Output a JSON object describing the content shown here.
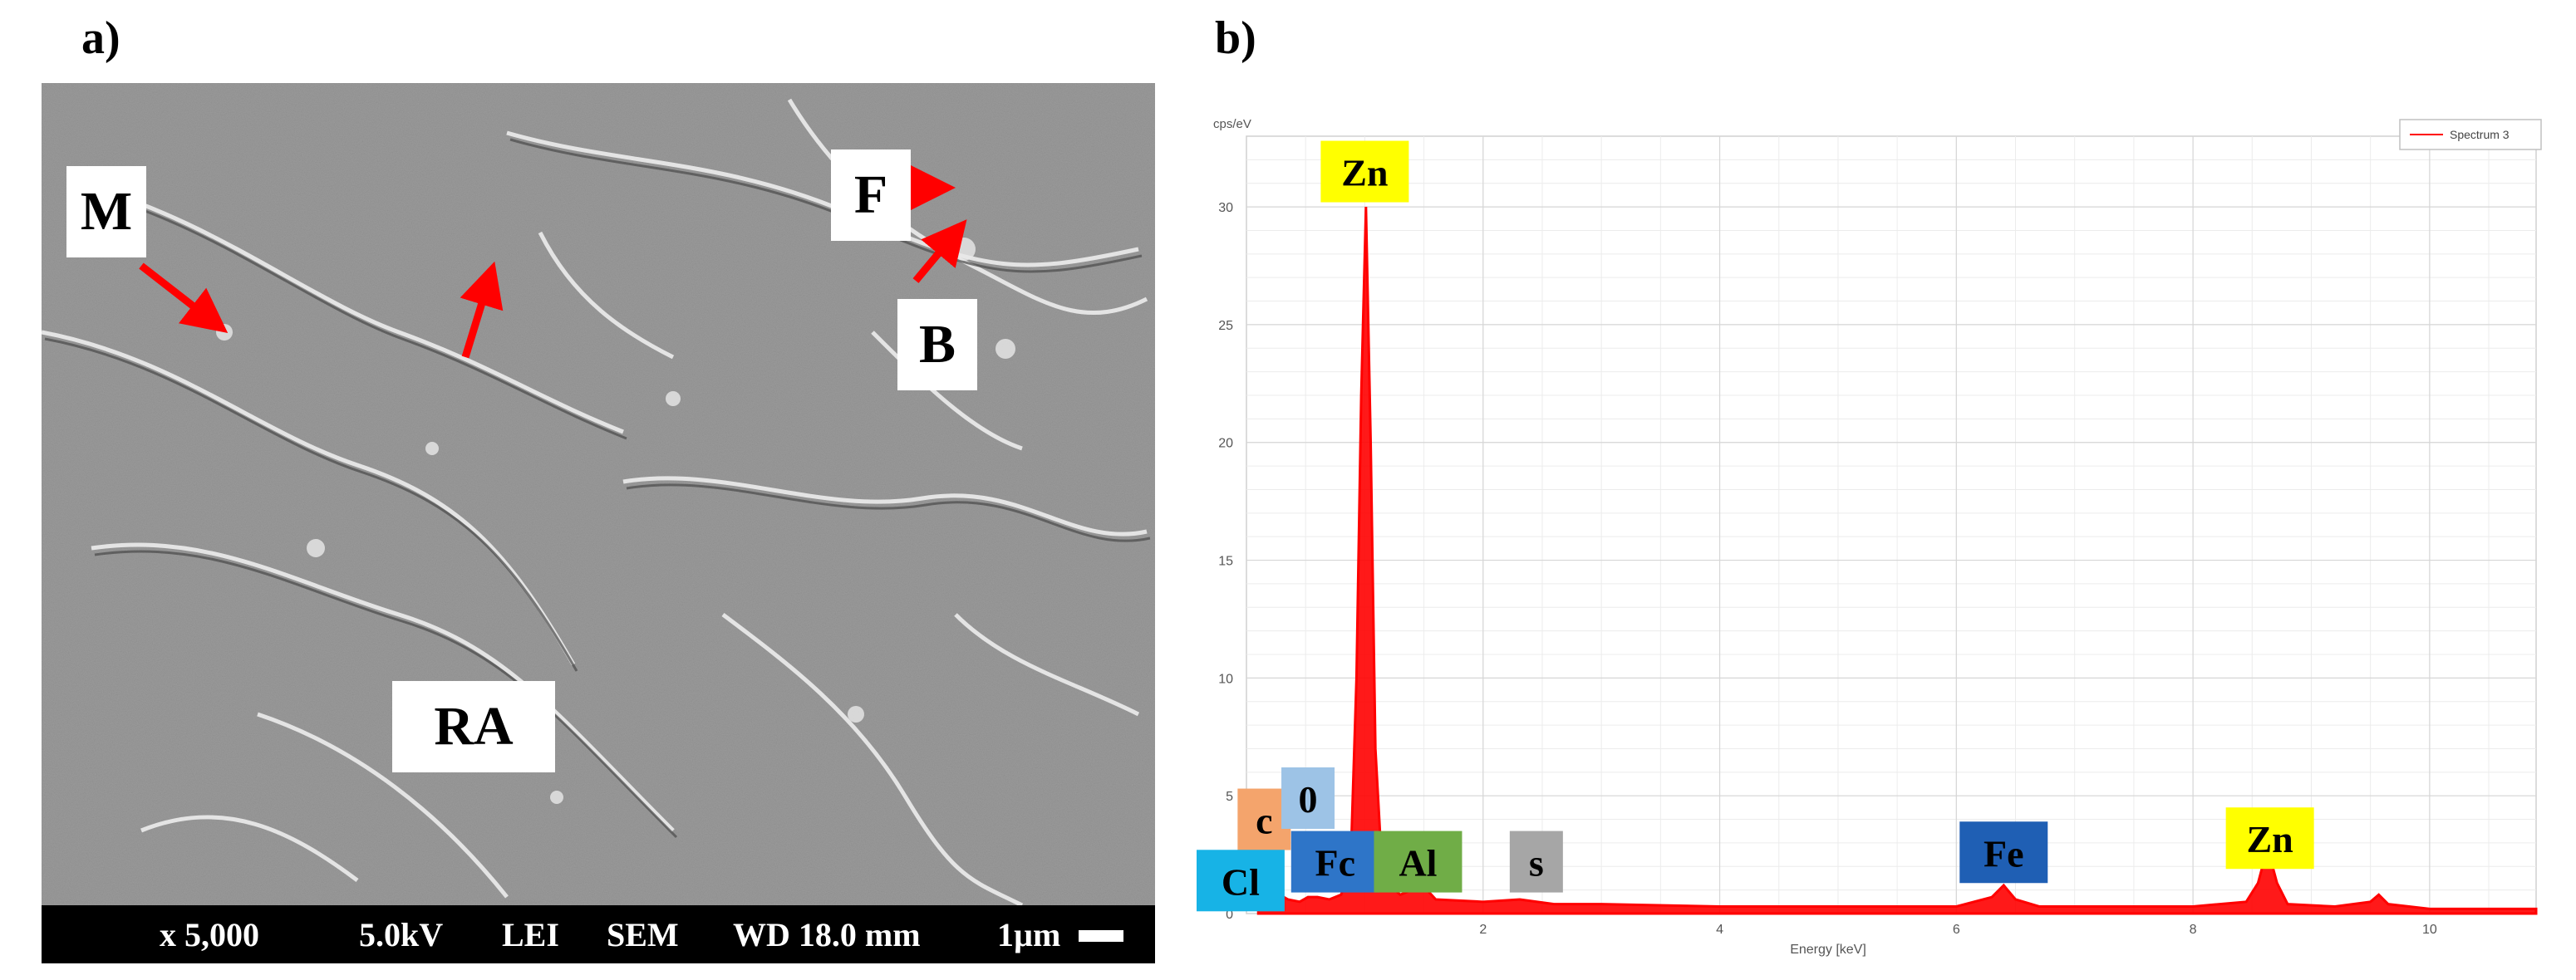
{
  "panels": {
    "a_label": "a)",
    "b_label": "b)"
  },
  "sem": {
    "labels": {
      "M": "M",
      "F": "F",
      "B": "B",
      "RA": "RA"
    },
    "scalebar": {
      "magnification": "x 5,000",
      "voltage": "5.0kV",
      "detector": "LEI",
      "mode": "SEM",
      "working_distance": "WD 18.0 mm",
      "scale": "1µm"
    },
    "colors": {
      "arrow": "#ff0000",
      "background": "#9a9a9a"
    }
  },
  "chart_data": {
    "type": "line",
    "title": "",
    "ylabel": "cps/eV",
    "xlabel": "Energy [keV]",
    "xlim": [
      0,
      10.9
    ],
    "ylim": [
      0,
      33
    ],
    "x_ticks": [
      2,
      4,
      6,
      8,
      10
    ],
    "y_ticks": [
      0,
      5,
      10,
      15,
      20,
      25,
      30
    ],
    "grid": true,
    "legend": {
      "position": "top-right",
      "entries": [
        "Spectrum 3"
      ]
    },
    "series": [
      {
        "name": "Spectrum 3",
        "color": "#ff0000",
        "x": [
          0.1,
          0.2,
          0.28,
          0.35,
          0.45,
          0.52,
          0.6,
          0.7,
          0.8,
          0.88,
          0.93,
          0.97,
          1.01,
          1.05,
          1.09,
          1.15,
          1.3,
          1.49,
          1.6,
          2.0,
          2.31,
          2.6,
          3.0,
          4.0,
          5.0,
          6.0,
          6.3,
          6.4,
          6.5,
          6.7,
          7.0,
          8.0,
          8.45,
          8.55,
          8.63,
          8.71,
          8.8,
          9.2,
          9.5,
          9.57,
          9.65,
          10.0,
          10.9
        ],
        "y": [
          0.2,
          0.5,
          0.8,
          0.6,
          0.5,
          0.7,
          0.7,
          0.6,
          0.8,
          2.0,
          10.0,
          22.0,
          30.0,
          20.0,
          7.0,
          1.5,
          0.8,
          1.2,
          0.6,
          0.5,
          0.6,
          0.4,
          0.4,
          0.3,
          0.3,
          0.3,
          0.7,
          1.2,
          0.6,
          0.3,
          0.3,
          0.3,
          0.5,
          1.3,
          2.8,
          1.3,
          0.4,
          0.3,
          0.5,
          0.8,
          0.4,
          0.2,
          0.2
        ]
      }
    ],
    "element_labels": [
      {
        "text": "Zn",
        "x": 1.0,
        "y": 31.5,
        "color": "#ffff00",
        "text_color": "#000000"
      },
      {
        "text": "Zn",
        "x": 8.65,
        "y": 3.2,
        "color": "#ffff00",
        "text_color": "#000000"
      },
      {
        "text": "Fe",
        "x": 6.4,
        "y": 2.6,
        "color": "#1f5fb4",
        "text_color": "#000000"
      },
      {
        "text": "c",
        "x": 0.15,
        "y": 4.0,
        "color": "#f4a46c",
        "text_color": "#000000"
      },
      {
        "text": "0",
        "x": 0.52,
        "y": 4.9,
        "color": "#9dc3e6",
        "text_color": "#000000"
      },
      {
        "text": "Cl",
        "x": -0.05,
        "y": 1.4,
        "color": "#17b3e6",
        "text_color": "#000000"
      },
      {
        "text": "Fc",
        "x": 0.75,
        "y": 2.2,
        "color": "#2e75c8",
        "text_color": "#000000"
      },
      {
        "text": "Al",
        "x": 1.45,
        "y": 2.2,
        "color": "#70ad47",
        "text_color": "#000000"
      },
      {
        "text": "s",
        "x": 2.45,
        "y": 2.2,
        "color": "#a6a6a6",
        "text_color": "#000000"
      }
    ]
  }
}
